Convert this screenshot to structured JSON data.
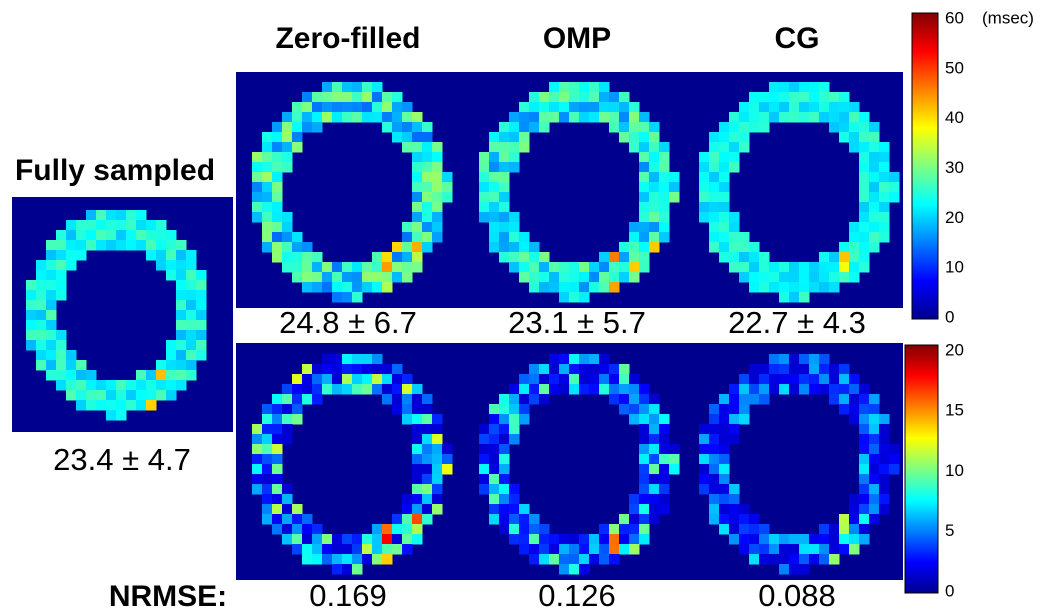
{
  "fully_sampled": {
    "title": "Fully sampled",
    "mean_sd": "23.4 ± 4.7"
  },
  "methods": [
    {
      "title": "Zero-filled",
      "mean_sd": "24.8 ± 6.7",
      "nrmse": "0.169"
    },
    {
      "title": "OMP",
      "mean_sd": "23.1 ± 5.7",
      "nrmse": "0.126"
    },
    {
      "title": "CG",
      "mean_sd": "22.7 ± 4.3",
      "nrmse": "0.088"
    }
  ],
  "nrmse_label": "NRMSE:",
  "colorbars": [
    {
      "unit": "(msec)",
      "ticks": [
        "60",
        "50",
        "40",
        "30",
        "20",
        "10",
        "0"
      ]
    },
    {
      "ticks": [
        "20",
        "15",
        "10",
        "5",
        "0"
      ]
    }
  ]
}
